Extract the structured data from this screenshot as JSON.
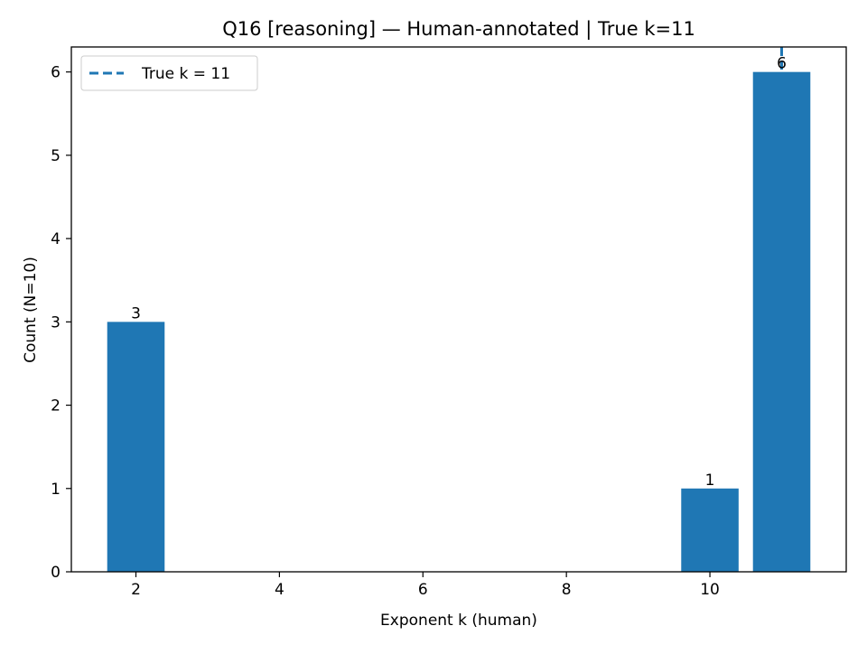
{
  "chart_data": {
    "type": "bar",
    "title": "Q16 [reasoning] — Human-annotated | True k=11",
    "xlabel": "Exponent k (human)",
    "ylabel": "Count (N=10)",
    "x": [
      2,
      10,
      11
    ],
    "values": [
      3,
      1,
      6
    ],
    "data_labels": [
      "3",
      "1",
      "6"
    ],
    "bar_width": 0.8,
    "xlim": [
      1.1,
      11.9
    ],
    "ylim": [
      0,
      6.3
    ],
    "xticks": [
      2,
      4,
      6,
      8,
      10
    ],
    "xtick_labels": [
      "2",
      "4",
      "6",
      "8",
      "10"
    ],
    "yticks": [
      0,
      1,
      2,
      3,
      4,
      5,
      6
    ],
    "ytick_labels": [
      "0",
      "1",
      "2",
      "3",
      "4",
      "5",
      "6"
    ],
    "reference_line": {
      "x": 11,
      "style": "dashed",
      "label": "True k = 11"
    },
    "legend": {
      "position": "top-left",
      "entries": [
        "True k = 11"
      ]
    },
    "grid": false,
    "colors": {
      "bar": "#1f77b4",
      "reference_line": "#1f77b4"
    }
  }
}
